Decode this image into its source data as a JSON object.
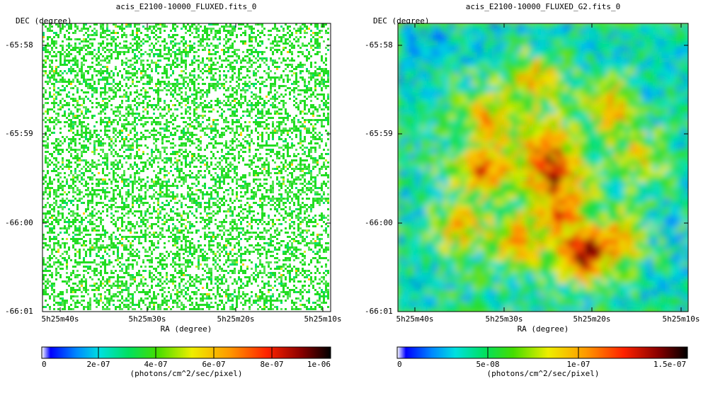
{
  "panels": [
    {
      "title": "acis_E2100-10000_FLUXED.fits_0",
      "ylabel": "DEC (degree)",
      "xlabel": "RA (degree)",
      "y_ticks": [
        "-65:58",
        "-65:59",
        "-66:00",
        "-66:01"
      ],
      "x_ticks": [
        "5h25m40s",
        "5h25m30s",
        "5h25m20s",
        "5h25m10s"
      ],
      "image_style": "sparse-pixels",
      "colorbar": {
        "ticks": [
          "0",
          "2e-07",
          "4e-07",
          "6e-07",
          "8e-07",
          "1e-06"
        ],
        "range": [
          0,
          1e-06
        ],
        "label": "(photons/cm^2/sec/pixel)"
      }
    },
    {
      "title": "acis_E2100-10000_FLUXED_G2.fits_0",
      "ylabel": "DEC (degree)",
      "xlabel": "RA (degree)",
      "y_ticks": [
        "-65:58",
        "-65:59",
        "-66:00",
        "-66:01"
      ],
      "x_ticks": [
        "5h25m40s",
        "5h25m30s",
        "5h25m20s",
        "5h25m10s"
      ],
      "image_style": "smoothed",
      "colorbar": {
        "ticks": [
          "0",
          "5e-08",
          "1e-07",
          "1.5e-07"
        ],
        "range": [
          0,
          1.6e-07
        ],
        "label": "(photons/cm^2/sec/pixel)"
      }
    }
  ],
  "chart_data": [
    {
      "type": "heatmap",
      "title": "acis_E2100-10000_FLUXED.fits_0",
      "xlabel": "RA (degree)",
      "ylabel": "DEC (degree)",
      "x_ticks": [
        "5h25m40s",
        "5h25m30s",
        "5h25m20s",
        "5h25m10s"
      ],
      "y_ticks": [
        "-65:58",
        "-65:59",
        "-66:00",
        "-66:01"
      ],
      "color_scale": "rainbow (blue-cyan-green-yellow-orange-red-black)",
      "value_range": [
        0,
        1e-06
      ],
      "colorbar_ticks": [
        0,
        2e-07,
        4e-07,
        6e-07,
        8e-07,
        1e-06
      ],
      "colorbar_label": "(photons/cm^2/sec/pixel)",
      "grid": false
    },
    {
      "type": "heatmap",
      "title": "acis_E2100-10000_FLUXED_G2.fits_0",
      "xlabel": "RA (degree)",
      "ylabel": "DEC (degree)",
      "x_ticks": [
        "5h25m40s",
        "5h25m30s",
        "5h25m20s",
        "5h25m10s"
      ],
      "y_ticks": [
        "-65:58",
        "-65:59",
        "-66:00",
        "-66:01"
      ],
      "color_scale": "rainbow (blue-cyan-green-yellow-orange-red-black)",
      "value_range": [
        0,
        1.6e-07
      ],
      "colorbar_ticks": [
        0,
        5e-08,
        1e-07,
        1.5e-07
      ],
      "colorbar_label": "(photons/cm^2/sec/pixel)",
      "grid": false
    }
  ],
  "colors": {
    "colormap": [
      "#ffffff",
      "#0000ff",
      "#00c8ff",
      "#00e8a0",
      "#22dd22",
      "#aaee22",
      "#ffff00",
      "#ffb000",
      "#ff5500",
      "#e00000",
      "#800000",
      "#000000"
    ]
  }
}
